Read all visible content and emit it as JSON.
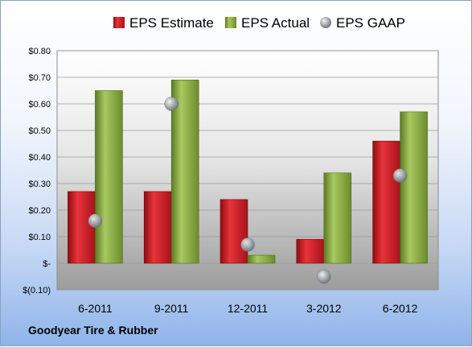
{
  "company_label": "Goodyear Tire & Rubber",
  "chart_data": {
    "type": "bar",
    "categories": [
      "6-2011",
      "9-2011",
      "12-2011",
      "3-2012",
      "6-2012"
    ],
    "series": [
      {
        "name": "EPS Estimate",
        "kind": "bar",
        "color": "#c0161d",
        "values": [
          0.27,
          0.27,
          0.24,
          0.09,
          0.46
        ]
      },
      {
        "name": "EPS Actual",
        "kind": "bar",
        "color": "#7fa13a",
        "values": [
          0.65,
          0.69,
          0.03,
          0.34,
          0.57
        ]
      },
      {
        "name": "EPS GAAP",
        "kind": "scatter",
        "color": "#9aa0a8",
        "values": [
          0.16,
          0.6,
          0.07,
          -0.05,
          0.33
        ]
      }
    ],
    "ylim": [
      -0.1,
      0.8
    ],
    "yticks": [
      0.8,
      0.7,
      0.6,
      0.5,
      0.4,
      0.3,
      0.2,
      0.1,
      0.0,
      -0.1
    ],
    "ytick_labels": [
      "$0.80",
      "$0.70",
      "$0.60",
      "$0.50",
      "$0.40",
      "$0.30",
      "$0.20",
      "$0.10",
      "$-",
      "$(0.10)"
    ],
    "grid": true,
    "legend_position": "top"
  }
}
